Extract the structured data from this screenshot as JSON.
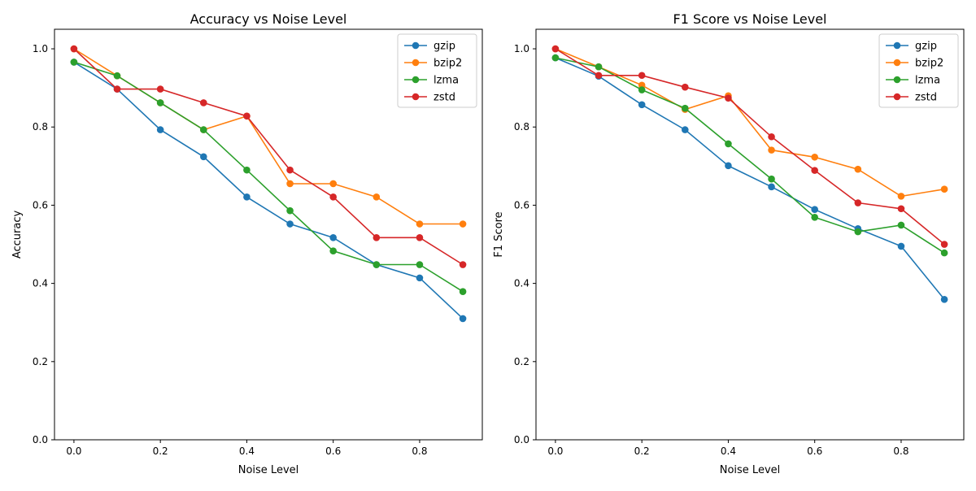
{
  "chart_data": [
    {
      "type": "line",
      "title": "Accuracy vs Noise Level",
      "xlabel": "Noise Level",
      "ylabel": "Accuracy",
      "x": [
        0.0,
        0.1,
        0.2,
        0.3,
        0.4,
        0.5,
        0.6,
        0.7,
        0.8,
        0.9
      ],
      "xlim": [
        -0.045,
        0.945
      ],
      "ylim": [
        0.0,
        1.05
      ],
      "xticks": [
        "0.0",
        "0.2",
        "0.4",
        "0.6",
        "0.8"
      ],
      "xtick_values": [
        0.0,
        0.2,
        0.4,
        0.6,
        0.8
      ],
      "yticks": [
        "0.0",
        "0.2",
        "0.4",
        "0.6",
        "0.8",
        "1.0"
      ],
      "ytick_values": [
        0.0,
        0.2,
        0.4,
        0.6,
        0.8,
        1.0
      ],
      "legend_position": "top-right",
      "grid": false,
      "series": [
        {
          "name": "gzip",
          "color": "#1f77b4",
          "values": [
            0.966,
            0.897,
            0.793,
            0.724,
            0.621,
            0.552,
            0.517,
            0.448,
            0.414,
            0.31
          ]
        },
        {
          "name": "bzip2",
          "color": "#ff7f0e",
          "values": [
            1.0,
            0.931,
            0.862,
            0.793,
            0.828,
            0.655,
            0.655,
            0.621,
            0.552,
            0.552
          ]
        },
        {
          "name": "lzma",
          "color": "#2ca02c",
          "values": [
            0.966,
            0.931,
            0.862,
            0.793,
            0.69,
            0.586,
            0.483,
            0.448,
            0.448,
            0.379
          ]
        },
        {
          "name": "zstd",
          "color": "#d62728",
          "values": [
            1.0,
            0.897,
            0.897,
            0.862,
            0.828,
            0.69,
            0.621,
            0.517,
            0.517,
            0.448
          ]
        }
      ]
    },
    {
      "type": "line",
      "title": "F1 Score vs Noise Level",
      "xlabel": "Noise Level",
      "ylabel": "F1 Score",
      "x": [
        0.0,
        0.1,
        0.2,
        0.3,
        0.4,
        0.5,
        0.6,
        0.7,
        0.8,
        0.9
      ],
      "xlim": [
        -0.045,
        0.945
      ],
      "ylim": [
        0.0,
        1.05
      ],
      "xticks": [
        "0.0",
        "0.2",
        "0.4",
        "0.6",
        "0.8"
      ],
      "xtick_values": [
        0.0,
        0.2,
        0.4,
        0.6,
        0.8
      ],
      "yticks": [
        "0.0",
        "0.2",
        "0.4",
        "0.6",
        "0.8",
        "1.0"
      ],
      "ytick_values": [
        0.0,
        0.2,
        0.4,
        0.6,
        0.8,
        1.0
      ],
      "legend_position": "top-right",
      "grid": false,
      "series": [
        {
          "name": "gzip",
          "color": "#1f77b4",
          "values": [
            0.977,
            0.93,
            0.857,
            0.793,
            0.701,
            0.647,
            0.589,
            0.54,
            0.495,
            0.359
          ]
        },
        {
          "name": "bzip2",
          "color": "#ff7f0e",
          "values": [
            1.0,
            0.954,
            0.907,
            0.845,
            0.88,
            0.741,
            0.723,
            0.692,
            0.623,
            0.641
          ]
        },
        {
          "name": "lzma",
          "color": "#2ca02c",
          "values": [
            0.977,
            0.954,
            0.895,
            0.848,
            0.757,
            0.667,
            0.569,
            0.532,
            0.549,
            0.478
          ]
        },
        {
          "name": "zstd",
          "color": "#d62728",
          "values": [
            1.0,
            0.932,
            0.932,
            0.902,
            0.874,
            0.775,
            0.689,
            0.606,
            0.591,
            0.5
          ]
        }
      ]
    }
  ]
}
